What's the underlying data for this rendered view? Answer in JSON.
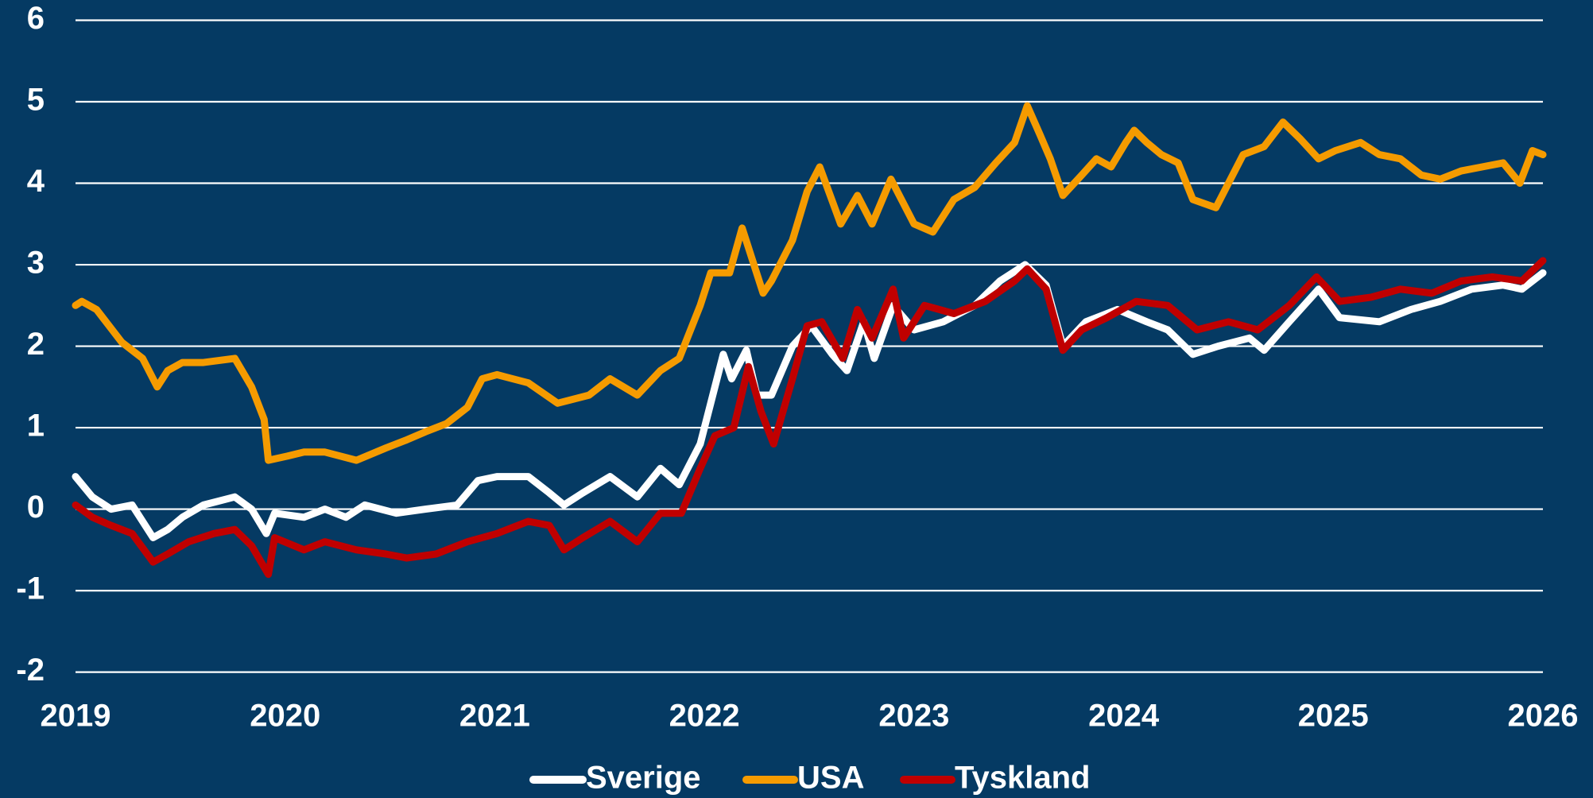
{
  "chart_data": {
    "type": "line",
    "xlim": [
      2019,
      2026
    ],
    "xticks": [
      2019,
      2020,
      2021,
      2022,
      2023,
      2024,
      2025,
      2026
    ],
    "ylim": [
      -2,
      6
    ],
    "yticks": [
      -2,
      -1,
      0,
      1,
      2,
      3,
      4,
      5,
      6
    ],
    "grid": true,
    "legend": "bottom",
    "series": [
      {
        "name": "Sverige",
        "color": "#ffffff",
        "x": [
          2019.0,
          2019.08,
          2019.17,
          2019.27,
          2019.37,
          2019.44,
          2019.51,
          2019.61,
          2019.76,
          2019.84,
          2019.91,
          2019.95,
          2020.09,
          2020.19,
          2020.29,
          2020.38,
          2020.53,
          2020.67,
          2020.82,
          2020.92,
          2021.01,
          2021.16,
          2021.26,
          2021.33,
          2021.42,
          2021.55,
          2021.68,
          2021.79,
          2021.88,
          2021.98,
          2022.03,
          2022.09,
          2022.13,
          2022.2,
          2022.25,
          2022.32,
          2022.42,
          2022.51,
          2022.61,
          2022.68,
          2022.76,
          2022.81,
          2022.9,
          2023.0,
          2023.14,
          2023.29,
          2023.41,
          2023.53,
          2023.63,
          2023.71,
          2023.82,
          2023.97,
          2024.11,
          2024.21,
          2024.33,
          2024.45,
          2024.6,
          2024.67,
          2024.79,
          2024.93,
          2025.03,
          2025.22,
          2025.37,
          2025.51,
          2025.66,
          2025.81,
          2025.9,
          2026.0
        ],
        "values": [
          0.4,
          0.15,
          0.0,
          0.05,
          -0.35,
          -0.25,
          -0.1,
          0.05,
          0.15,
          0.0,
          -0.3,
          -0.05,
          -0.1,
          0.0,
          -0.1,
          0.05,
          -0.05,
          0.0,
          0.05,
          0.35,
          0.4,
          0.4,
          0.2,
          0.05,
          0.2,
          0.4,
          0.15,
          0.5,
          0.3,
          0.8,
          1.3,
          1.9,
          1.6,
          1.95,
          1.4,
          1.4,
          2.0,
          2.25,
          1.9,
          1.7,
          2.3,
          1.85,
          2.5,
          2.2,
          2.3,
          2.5,
          2.8,
          3.0,
          2.75,
          2.0,
          2.3,
          2.45,
          2.3,
          2.2,
          1.9,
          2.0,
          2.1,
          1.95,
          2.3,
          2.7,
          2.35,
          2.3,
          2.45,
          2.55,
          2.7,
          2.75,
          2.7,
          2.9
        ]
      },
      {
        "name": "USA",
        "color": "#f59b00",
        "x": [
          2019.0,
          2019.03,
          2019.1,
          2019.22,
          2019.32,
          2019.39,
          2019.44,
          2019.51,
          2019.61,
          2019.76,
          2019.84,
          2019.9,
          2019.92,
          2020.01,
          2020.09,
          2020.19,
          2020.34,
          2020.48,
          2020.58,
          2020.67,
          2020.77,
          2020.87,
          2020.94,
          2021.01,
          2021.16,
          2021.3,
          2021.45,
          2021.55,
          2021.68,
          2021.79,
          2021.88,
          2021.98,
          2022.03,
          2022.12,
          2022.18,
          2022.28,
          2022.32,
          2022.42,
          2022.49,
          2022.55,
          2022.65,
          2022.73,
          2022.8,
          2022.89,
          2023.0,
          2023.09,
          2023.19,
          2023.29,
          2023.39,
          2023.48,
          2023.54,
          2023.6,
          2023.65,
          2023.71,
          2023.8,
          2023.87,
          2023.94,
          2024.01,
          2024.05,
          2024.11,
          2024.18,
          2024.26,
          2024.33,
          2024.44,
          2024.5,
          2024.57,
          2024.67,
          2024.76,
          2024.84,
          2024.93,
          2025.01,
          2025.13,
          2025.22,
          2025.32,
          2025.42,
          2025.51,
          2025.61,
          2025.71,
          2025.81,
          2025.89,
          2025.95,
          2026.0
        ],
        "values": [
          2.5,
          2.55,
          2.45,
          2.05,
          1.85,
          1.5,
          1.7,
          1.8,
          1.8,
          1.85,
          1.5,
          1.1,
          0.6,
          0.65,
          0.7,
          0.7,
          0.6,
          0.75,
          0.85,
          0.95,
          1.05,
          1.25,
          1.6,
          1.65,
          1.55,
          1.3,
          1.4,
          1.6,
          1.4,
          1.7,
          1.85,
          2.5,
          2.9,
          2.9,
          3.45,
          2.65,
          2.8,
          3.3,
          3.9,
          4.2,
          3.5,
          3.85,
          3.5,
          4.05,
          3.5,
          3.4,
          3.8,
          3.95,
          4.25,
          4.5,
          4.95,
          4.6,
          4.3,
          3.85,
          4.1,
          4.3,
          4.2,
          4.5,
          4.65,
          4.5,
          4.35,
          4.25,
          3.8,
          3.7,
          4.0,
          4.35,
          4.45,
          4.75,
          4.55,
          4.3,
          4.4,
          4.5,
          4.35,
          4.3,
          4.1,
          4.05,
          4.15,
          4.2,
          4.25,
          4.0,
          4.4,
          4.35
        ]
      },
      {
        "name": "Tyskland",
        "color": "#c00000",
        "x": [
          2019.0,
          2019.08,
          2019.17,
          2019.27,
          2019.37,
          2019.44,
          2019.54,
          2019.66,
          2019.76,
          2019.84,
          2019.92,
          2019.95,
          2020.09,
          2020.19,
          2020.34,
          2020.48,
          2020.58,
          2020.72,
          2020.87,
          2021.01,
          2021.16,
          2021.26,
          2021.33,
          2021.42,
          2021.55,
          2021.68,
          2021.79,
          2021.89,
          2021.98,
          2022.05,
          2022.14,
          2022.21,
          2022.27,
          2022.33,
          2022.42,
          2022.49,
          2022.56,
          2022.66,
          2022.73,
          2022.8,
          2022.9,
          2022.95,
          2023.05,
          2023.19,
          2023.34,
          2023.48,
          2023.54,
          2023.63,
          2023.71,
          2023.8,
          2023.92,
          2024.06,
          2024.21,
          2024.35,
          2024.5,
          2024.64,
          2024.79,
          2024.92,
          2025.03,
          2025.18,
          2025.32,
          2025.47,
          2025.61,
          2025.76,
          2025.9,
          2026.0
        ],
        "values": [
          0.05,
          -0.1,
          -0.2,
          -0.3,
          -0.65,
          -0.55,
          -0.4,
          -0.3,
          -0.25,
          -0.45,
          -0.8,
          -0.35,
          -0.5,
          -0.4,
          -0.5,
          -0.55,
          -0.6,
          -0.55,
          -0.4,
          -0.3,
          -0.15,
          -0.2,
          -0.5,
          -0.35,
          -0.15,
          -0.4,
          -0.05,
          -0.05,
          0.5,
          0.9,
          1.0,
          1.75,
          1.2,
          0.8,
          1.6,
          2.25,
          2.3,
          1.85,
          2.45,
          2.1,
          2.7,
          2.1,
          2.5,
          2.4,
          2.55,
          2.8,
          2.95,
          2.7,
          1.95,
          2.2,
          2.35,
          2.55,
          2.5,
          2.2,
          2.3,
          2.2,
          2.5,
          2.85,
          2.55,
          2.6,
          2.7,
          2.65,
          2.8,
          2.85,
          2.8,
          3.05
        ]
      }
    ]
  }
}
